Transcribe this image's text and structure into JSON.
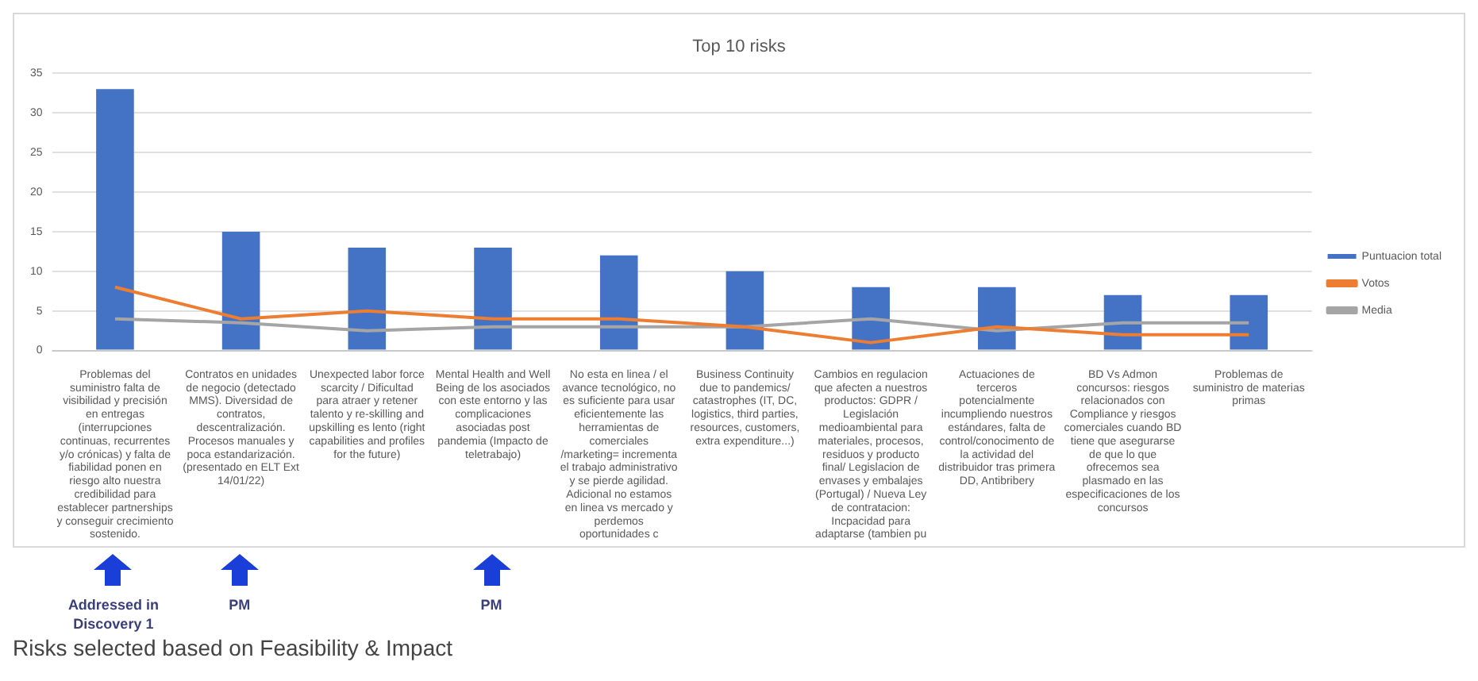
{
  "chart_data": {
    "type": "bar",
    "title": "Top 10 risks",
    "categories": [
      "Problemas del suministro falta de visibilidad y precisión en entregas (interrupciones continuas, recurrentes y/o crónicas) y falta de fiabilidad ponen en riesgo alto nuestra credibilidad para establecer partnerships y conseguir crecimiento sostenido.",
      "Contratos en unidades de negocio (detectado MMS). Diversidad de contratos, descentralización. Procesos manuales y poca estandarización. (presentado en ELT Ext 14/01/22)",
      "Unexpected labor force scarcity / Dificultad para atraer y retener talento y re-skilling and upskilling es lento (right capabilities and profiles for the future)",
      "Mental Health and Well Being de los asociados con este entorno y las complicaciones asociadas post pandemia (Impacto de teletrabajo)",
      "No esta en linea / el avance tecnológico, no es suficiente para usar eficientemente las herramientas de comerciales /marketing= incrementa el trabajo administrativo y se pierde agilidad. Adicional no estamos en linea vs mercado y perdemos oportunidades c",
      "Business Continuity due to pandemics/ catastrophes (IT, DC, logistics, third parties, resources, customers, extra expenditure...)",
      "Cambios en regulacion que afecten a nuestros productos: GDPR / Legislación medioambiental para materiales, procesos, residuos y producto final/ Legislacion de envases y embalajes (Portugal) / Nueva Ley de contratacion: Incpacidad para adaptarse (tambien pu",
      "Actuaciones de terceros potencialmente incumpliendo nuestros estándares, falta de control/conocimento de la actividad del distribuidor tras primera DD, Antibribery",
      "BD Vs Admon concursos: riesgos relacionados con Compliance y riesgos comerciales cuando BD tiene que asegurarse de que lo que ofrecemos sea plasmado en las especificaciones de los concursos",
      "Problemas de suministro de materias primas"
    ],
    "series": [
      {
        "name": "Puntuacion total",
        "color": "#4472c4",
        "values": [
          33,
          15,
          13,
          13,
          12,
          10,
          8,
          8,
          7,
          7
        ]
      },
      {
        "name": "Votos",
        "type": "line",
        "color": "#ed7d31",
        "values": [
          8,
          4,
          5,
          4,
          4,
          3,
          1,
          3,
          2,
          2
        ]
      },
      {
        "name": "Media",
        "type": "line",
        "color": "#a5a5a5",
        "values": [
          4,
          3.5,
          2.5,
          3,
          3,
          3,
          4,
          2.5,
          3.5,
          3.5
        ]
      }
    ],
    "ylim": [
      0,
      35
    ],
    "yticks": [
      0,
      5,
      10,
      15,
      20,
      25,
      30,
      35
    ],
    "grid": "y",
    "legend": "right",
    "marker": "none",
    "line_style": "solid",
    "annotations": [
      "Addressed in Discovery 1",
      "PM",
      "PM",
      "Risks selected based on Feasibility & Impact"
    ]
  }
}
